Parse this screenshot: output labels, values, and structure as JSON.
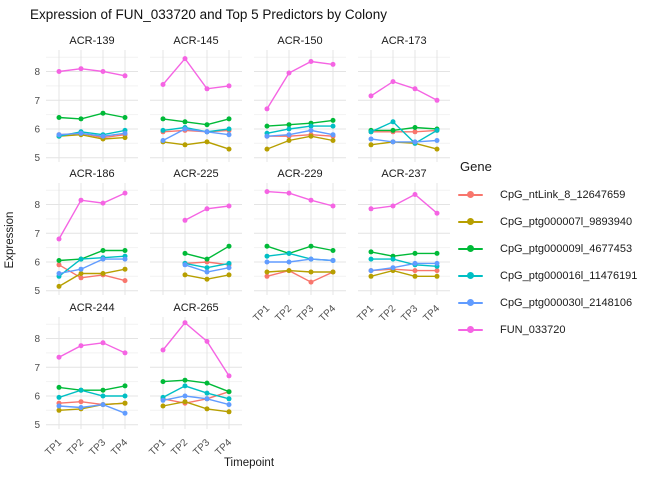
{
  "chart_data": {
    "type": "line",
    "title": "Expression of FUN_033720 and Top 5 Predictors by Colony",
    "xlabel": "Timepoint",
    "ylabel": "Expression",
    "legend_title": "Gene",
    "legend_position": "right",
    "x_categories": [
      "TP1",
      "TP2",
      "TP3",
      "TP4"
    ],
    "y_ticks": [
      5,
      6,
      7,
      8
    ],
    "ylim": [
      4.85,
      8.75
    ],
    "grid": "white panel, light gray major and minor gridlines (theme_minimal)",
    "facet_layout": {
      "columns": 4,
      "rows": 3,
      "note": "row3 has only 2 panels; ACR-225 has no TP1 data"
    },
    "series": [
      {
        "name": "CpG_ntLink_8_12647659",
        "color": "#F8766D"
      },
      {
        "name": "CpG_ptg000007l_9893940",
        "color": "#B79F00"
      },
      {
        "name": "CpG_ptg000009l_4677453",
        "color": "#00BA38"
      },
      {
        "name": "CpG_ptg000016l_11476191",
        "color": "#00BFC4"
      },
      {
        "name": "CpG_ptg000030l_2148106",
        "color": "#619CFF"
      },
      {
        "name": "FUN_033720",
        "color": "#F564E3"
      }
    ],
    "facets": [
      {
        "colony": "ACR-139",
        "values": [
          [
            5.8,
            5.85,
            5.7,
            5.8
          ],
          [
            5.75,
            5.8,
            5.65,
            5.7
          ],
          [
            6.4,
            6.35,
            6.55,
            6.4
          ],
          [
            5.75,
            5.9,
            5.8,
            5.95
          ],
          [
            5.8,
            5.85,
            5.75,
            5.85
          ],
          [
            8.0,
            8.1,
            8.0,
            7.85
          ]
        ]
      },
      {
        "colony": "ACR-145",
        "values": [
          [
            5.9,
            5.95,
            5.9,
            5.95
          ],
          [
            5.55,
            5.45,
            5.55,
            5.3
          ],
          [
            6.35,
            6.25,
            6.15,
            6.35
          ],
          [
            5.95,
            6.05,
            5.9,
            6.0
          ],
          [
            5.6,
            6.0,
            5.9,
            5.8
          ],
          [
            7.55,
            8.45,
            7.4,
            7.5
          ]
        ]
      },
      {
        "colony": "ACR-150",
        "values": [
          [
            5.75,
            5.75,
            5.8,
            5.75
          ],
          [
            5.3,
            5.6,
            5.75,
            5.6
          ],
          [
            6.1,
            6.15,
            6.2,
            6.3
          ],
          [
            5.85,
            6.0,
            6.1,
            6.1
          ],
          [
            5.75,
            5.8,
            5.95,
            5.8
          ],
          [
            6.7,
            7.95,
            8.35,
            8.25
          ]
        ]
      },
      {
        "colony": "ACR-173",
        "values": [
          [
            5.9,
            5.9,
            5.9,
            5.95
          ],
          [
            5.45,
            5.55,
            5.5,
            5.3
          ],
          [
            5.95,
            5.95,
            6.05,
            6.0
          ],
          [
            5.9,
            6.25,
            5.5,
            5.95
          ],
          [
            5.65,
            5.55,
            5.55,
            5.6
          ],
          [
            7.15,
            7.65,
            7.4,
            7.0
          ]
        ]
      },
      {
        "colony": "ACR-186",
        "values": [
          [
            5.9,
            5.45,
            5.55,
            5.35
          ],
          [
            5.15,
            5.6,
            5.6,
            5.75
          ],
          [
            6.05,
            6.1,
            6.4,
            6.4
          ],
          [
            5.5,
            6.1,
            6.15,
            6.2
          ],
          [
            5.6,
            5.75,
            6.1,
            6.1
          ],
          [
            6.8,
            8.15,
            8.05,
            8.4
          ]
        ]
      },
      {
        "colony": "ACR-225",
        "values": [
          [
            null,
            5.95,
            6.0,
            5.9
          ],
          [
            null,
            5.55,
            5.4,
            5.55
          ],
          [
            null,
            6.3,
            6.1,
            6.55
          ],
          [
            null,
            5.95,
            5.8,
            5.95
          ],
          [
            null,
            5.9,
            5.65,
            5.8
          ],
          [
            null,
            7.45,
            7.85,
            7.95
          ]
        ]
      },
      {
        "colony": "ACR-229",
        "values": [
          [
            5.5,
            5.7,
            5.3,
            5.65
          ],
          [
            5.65,
            5.7,
            5.65,
            5.65
          ],
          [
            6.55,
            6.3,
            6.55,
            6.4
          ],
          [
            6.2,
            6.3,
            6.1,
            6.05
          ],
          [
            6.0,
            6.0,
            6.1,
            6.05
          ],
          [
            8.45,
            8.4,
            8.15,
            7.95
          ]
        ]
      },
      {
        "colony": "ACR-237",
        "values": [
          [
            5.7,
            5.75,
            5.7,
            5.7
          ],
          [
            5.5,
            5.7,
            5.5,
            5.5
          ],
          [
            6.35,
            6.2,
            6.3,
            6.3
          ],
          [
            6.1,
            6.1,
            5.9,
            5.85
          ],
          [
            5.7,
            5.8,
            5.95,
            5.95
          ],
          [
            7.85,
            7.95,
            8.35,
            7.7
          ]
        ]
      },
      {
        "colony": "ACR-244",
        "values": [
          [
            5.75,
            5.8,
            5.7,
            5.75
          ],
          [
            5.5,
            5.55,
            5.7,
            5.75
          ],
          [
            6.3,
            6.2,
            6.2,
            6.35
          ],
          [
            5.95,
            6.2,
            6.0,
            6.0
          ],
          [
            5.65,
            5.6,
            5.7,
            5.4
          ],
          [
            7.35,
            7.75,
            7.85,
            7.5
          ]
        ]
      },
      {
        "colony": "ACR-265",
        "values": [
          [
            5.9,
            5.75,
            5.9,
            6.15
          ],
          [
            5.65,
            5.8,
            5.55,
            5.45
          ],
          [
            6.5,
            6.55,
            6.45,
            6.15
          ],
          [
            5.95,
            6.35,
            6.1,
            5.9
          ],
          [
            5.85,
            6.0,
            5.9,
            5.7
          ],
          [
            7.6,
            8.55,
            7.9,
            6.7
          ]
        ]
      }
    ]
  }
}
